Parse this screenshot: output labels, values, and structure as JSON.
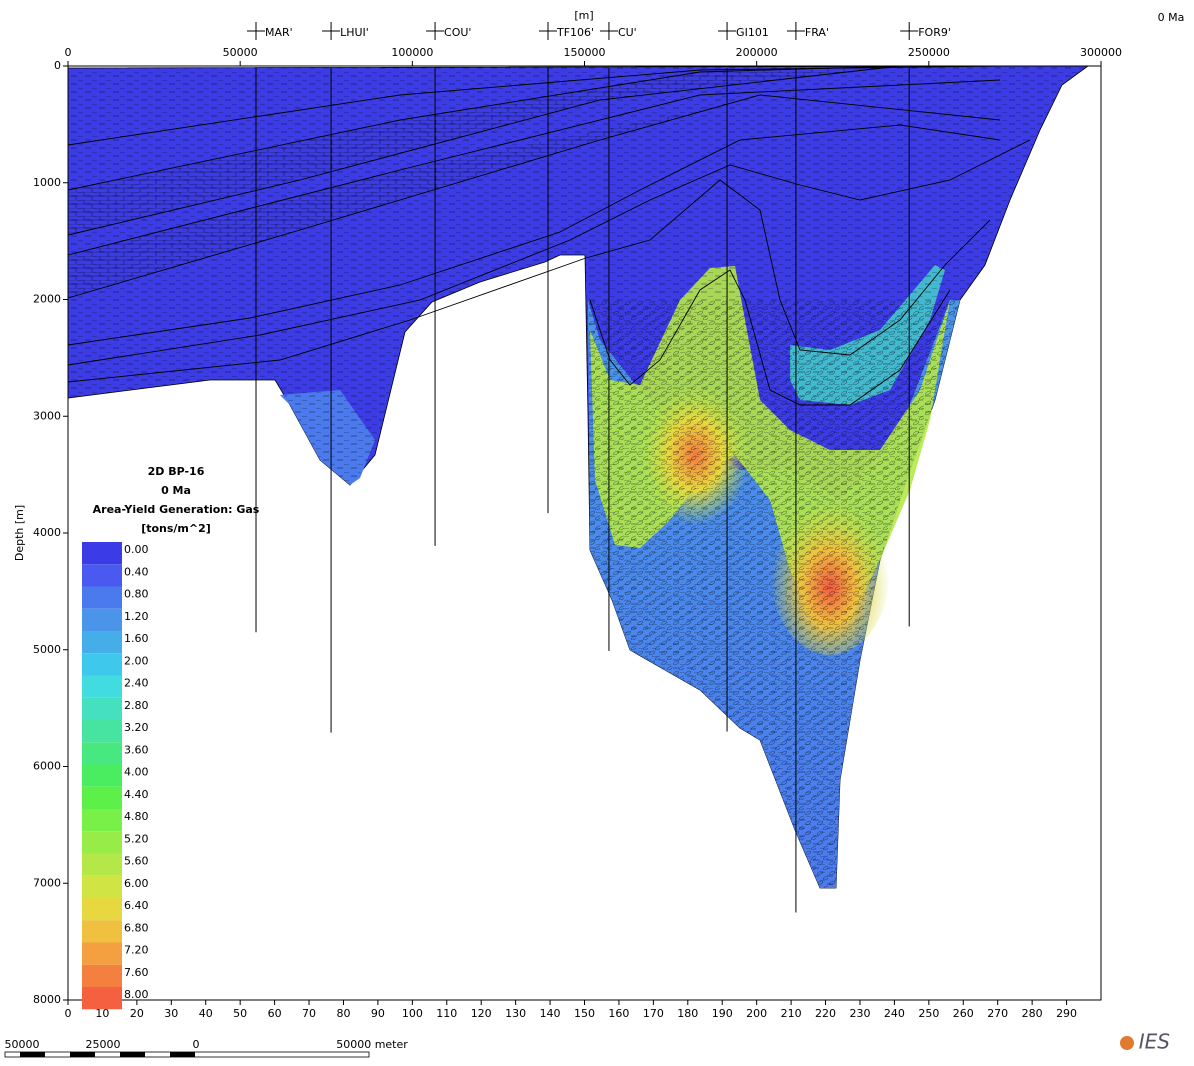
{
  "chart_data": {
    "type": "section",
    "top_axis_label": "[m]",
    "time_label": "0 Ma",
    "ylabel": "Depth [m]",
    "xlim": [
      0,
      300000
    ],
    "xticks": [
      0,
      50000,
      100000,
      150000,
      200000,
      250000,
      300000
    ],
    "bottom_xticks": [
      0,
      10,
      20,
      30,
      40,
      50,
      60,
      70,
      80,
      90,
      100,
      110,
      120,
      130,
      140,
      150,
      160,
      170,
      180,
      190,
      200,
      210,
      220,
      230,
      240,
      250,
      260,
      270,
      280,
      290
    ],
    "ylim": [
      0,
      8000
    ],
    "yticks": [
      0,
      1000,
      2000,
      3000,
      4000,
      5000,
      6000,
      7000,
      8000
    ],
    "wells": [
      {
        "name": "MAR'",
        "x": 54600,
        "depth": 4850
      },
      {
        "name": "LHUI'",
        "x": 76400,
        "depth": 5710
      },
      {
        "name": "COU'",
        "x": 106600,
        "depth": 4110
      },
      {
        "name": "TF106'",
        "x": 139400,
        "depth": 3830
      },
      {
        "name": "CU'",
        "x": 157100,
        "depth": 5010
      },
      {
        "name": "GI101",
        "x": 191400,
        "depth": 5700
      },
      {
        "name": "FRA'",
        "x": 211400,
        "depth": 7250
      },
      {
        "name": "FOR9'",
        "x": 244300,
        "depth": 4800
      }
    ],
    "legend": {
      "title_lines": [
        "2D BP-16",
        "0 Ma",
        "Area-Yield Generation: Gas",
        "[tons/m^2]"
      ],
      "levels": [
        {
          "value": 0,
          "label": "0.00"
        },
        {
          "value": 0.4,
          "label": "0.40"
        },
        {
          "value": 0.8,
          "label": "0.80"
        },
        {
          "value": 1.2,
          "label": "1.20"
        },
        {
          "value": 1.6,
          "label": "1.60"
        },
        {
          "value": 2,
          "label": "2.00"
        },
        {
          "value": 2.4,
          "label": "2.40"
        },
        {
          "value": 2.8,
          "label": "2.80"
        },
        {
          "value": 3.2,
          "label": "3.20"
        },
        {
          "value": 3.6,
          "label": "3.60"
        },
        {
          "value": 4,
          "label": "4.00"
        },
        {
          "value": 4.4,
          "label": "4.40"
        },
        {
          "value": 4.8,
          "label": "4.80"
        },
        {
          "value": 5.2,
          "label": "5.20"
        },
        {
          "value": 5.6,
          "label": "5.60"
        },
        {
          "value": 6,
          "label": "6.00"
        },
        {
          "value": 6.4,
          "label": "6.40"
        },
        {
          "value": 6.8,
          "label": "6.80"
        },
        {
          "value": 7.2,
          "label": "7.20"
        },
        {
          "value": 7.6,
          "label": "7.60"
        },
        {
          "value": 8,
          "label": "8.00"
        }
      ],
      "colors": [
        "#3c3ce6",
        "#4a5af0",
        "#4a7aee",
        "#4a95ea",
        "#45aee8",
        "#3ec8ec",
        "#40dce0",
        "#44e0c0",
        "#46e4a0",
        "#48e880",
        "#4aec60",
        "#5cf048",
        "#78f048",
        "#98ec48",
        "#b4e848",
        "#d0e444",
        "#e8d840",
        "#f0c040",
        "#f4a040",
        "#f48040",
        "#f46040"
      ]
    },
    "scale_bar": {
      "labels": [
        "50000",
        "25000",
        "0",
        "50000 meter"
      ]
    },
    "logo": "IES"
  }
}
